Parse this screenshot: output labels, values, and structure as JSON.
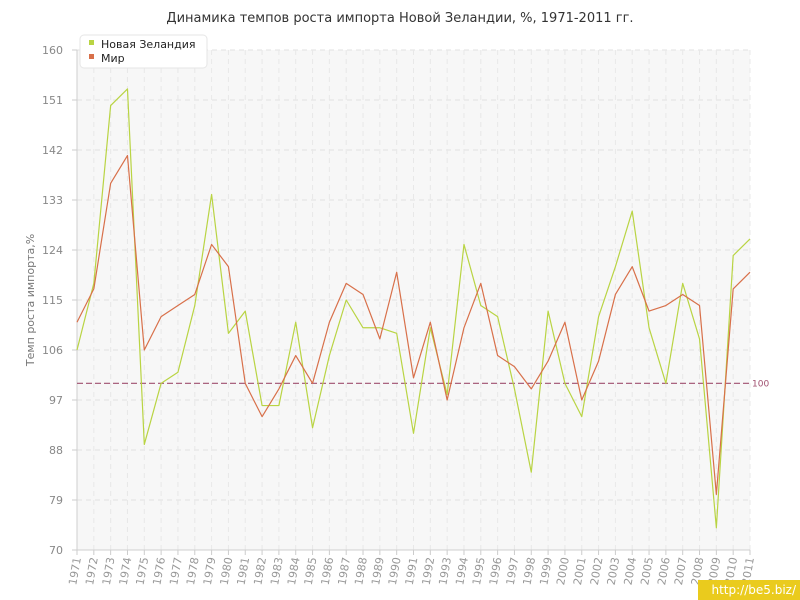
{
  "chart_data": {
    "type": "line",
    "title": "Динамика темпов роста импорта Новой Зеландии, %, 1971-2011 гг.",
    "ylabel": "Темп роста импорта,%",
    "xlabel": "",
    "ylim": [
      70,
      160
    ],
    "yticks": [
      "70",
      "79",
      "88",
      "97",
      "106",
      "115",
      "124",
      "133",
      "142",
      "151",
      "160"
    ],
    "categories": [
      "1971",
      "1972",
      "1973",
      "1974",
      "1975",
      "1976",
      "1977",
      "1978",
      "1979",
      "1980",
      "1981",
      "1982",
      "1983",
      "1984",
      "1985",
      "1986",
      "1987",
      "1988",
      "1989",
      "1990",
      "1991",
      "1992",
      "1993",
      "1994",
      "1995",
      "1996",
      "1997",
      "1998",
      "1999",
      "2000",
      "2001",
      "2002",
      "2003",
      "2004",
      "2005",
      "2006",
      "2007",
      "2008",
      "2009",
      "2010",
      "2011"
    ],
    "series": [
      {
        "name": "Новая Зеландия",
        "color": "#b9d443",
        "values": [
          106,
          118,
          150,
          153,
          89,
          100,
          102,
          114,
          134,
          109,
          113,
          96,
          96,
          111,
          92,
          105,
          115,
          110,
          110,
          109,
          91,
          110,
          98,
          125,
          114,
          112,
          99,
          84,
          113,
          100,
          94,
          112,
          121,
          131,
          110,
          100,
          118,
          108,
          74,
          123,
          126
        ]
      },
      {
        "name": "Мир",
        "color": "#d8704a",
        "values": [
          111,
          117,
          136,
          141,
          106,
          112,
          114,
          116,
          125,
          121,
          100,
          94,
          99,
          105,
          100,
          111,
          118,
          116,
          108,
          120,
          101,
          111,
          97,
          110,
          118,
          105,
          103,
          99,
          104,
          111,
          97,
          104,
          116,
          121,
          113,
          114,
          116,
          114,
          80,
          117,
          120
        ]
      }
    ],
    "reference_line": {
      "value": 100,
      "label": "100",
      "color": "#a05070"
    },
    "grid": true,
    "legend_position": "top-left"
  },
  "watermark": "http://be5.biz/"
}
